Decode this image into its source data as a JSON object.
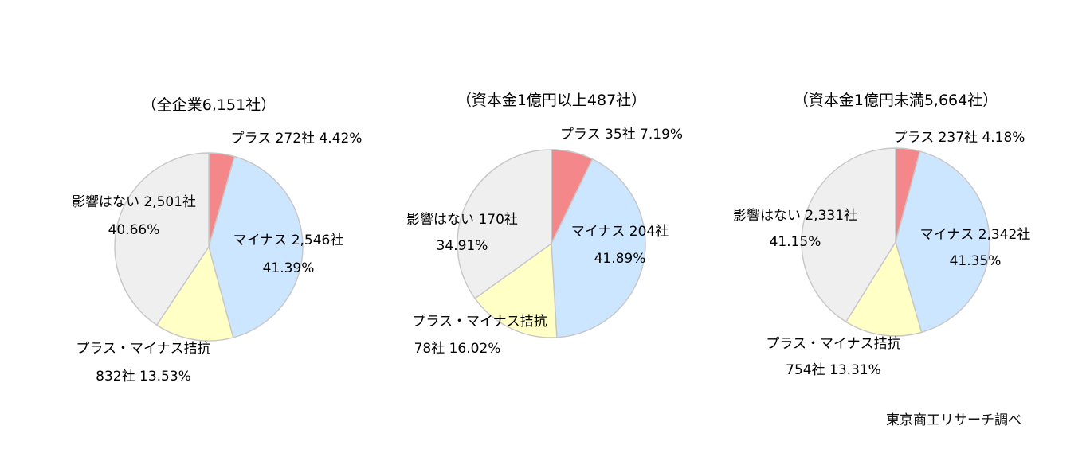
{
  "source": "東京商工リサーチ調べ",
  "colors": {
    "plus": "#F4878A",
    "minus": "#CCE6FF",
    "both": "#FFFFC6",
    "none": "#EFEFEF",
    "stroke": "#C8C8C8"
  },
  "chart_data": [
    {
      "type": "pie",
      "title": "（全企業6,151社）",
      "slices": [
        {
          "key": "plus",
          "lines": [
            "プラス 272社 4.42%"
          ],
          "count": 272,
          "percent": 4.42
        },
        {
          "key": "minus",
          "lines": [
            "マイナス 2,546社",
            "41.39%"
          ],
          "count": 2546,
          "percent": 41.39
        },
        {
          "key": "both",
          "lines": [
            "プラス・マイナス拮抗",
            "832社 13.53%"
          ],
          "count": 832,
          "percent": 13.53
        },
        {
          "key": "none",
          "lines": [
            "影響はない 2,501社",
            "40.66%"
          ],
          "count": 2501,
          "percent": 40.66
        }
      ]
    },
    {
      "type": "pie",
      "title": "（資本金1億円以上487社）",
      "slices": [
        {
          "key": "plus",
          "lines": [
            "プラス 35社 7.19%"
          ],
          "count": 35,
          "percent": 7.19
        },
        {
          "key": "minus",
          "lines": [
            "マイナス 204社",
            "41.89%"
          ],
          "count": 204,
          "percent": 41.89
        },
        {
          "key": "both",
          "lines": [
            "プラス・マイナス拮抗",
            "78社 16.02%"
          ],
          "count": 78,
          "percent": 16.02
        },
        {
          "key": "none",
          "lines": [
            "影響はない 170社",
            "34.91%"
          ],
          "count": 170,
          "percent": 34.91
        }
      ]
    },
    {
      "type": "pie",
      "title": "（資本金1億円未満5,664社）",
      "slices": [
        {
          "key": "plus",
          "lines": [
            "プラス 237社 4.18%"
          ],
          "count": 237,
          "percent": 4.18
        },
        {
          "key": "minus",
          "lines": [
            "マイナス 2,342社",
            "41.35%"
          ],
          "count": 2342,
          "percent": 41.35
        },
        {
          "key": "both",
          "lines": [
            "プラス・マイナス拮抗",
            "754社 13.31%"
          ],
          "count": 754,
          "percent": 13.31
        },
        {
          "key": "none",
          "lines": [
            "影響はない 2,331社",
            "41.15%"
          ],
          "count": 2331,
          "percent": 41.15
        }
      ]
    }
  ]
}
